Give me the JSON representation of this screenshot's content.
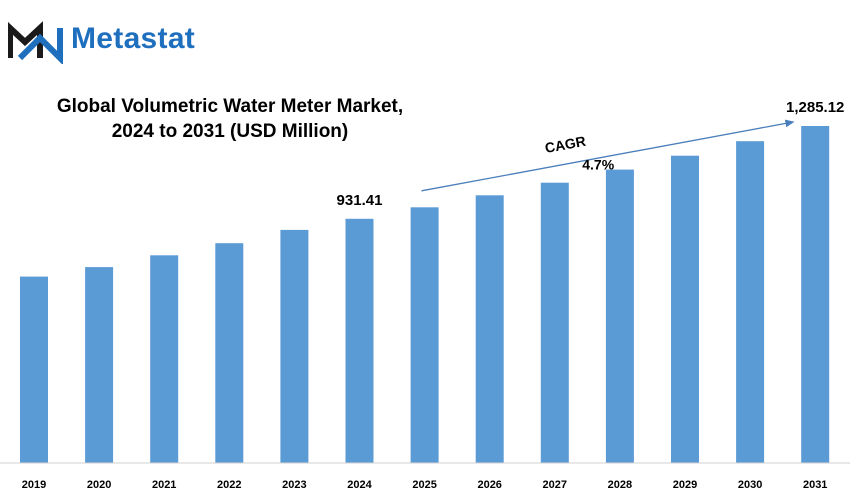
{
  "brand": {
    "name": "Metastat",
    "color": "#1f6fbf",
    "icon": "metastat-m-logo-icon"
  },
  "chart_data": {
    "type": "bar",
    "title": [
      "Global Volumetric Water Meter Market,",
      "2024 to 2031 (USD Million)"
    ],
    "categories": [
      "2019",
      "2020",
      "2021",
      "2022",
      "2023",
      "2024",
      "2025",
      "2026",
      "2027",
      "2028",
      "2029",
      "2030",
      "2031"
    ],
    "values": [
      711,
      747,
      792,
      838,
      889,
      931.41,
      975,
      1021,
      1069,
      1119,
      1172,
      1227,
      1285.12
    ],
    "data_labels": {
      "2024": "931.41",
      "2031": "1,285.12"
    },
    "annotation": {
      "label": "CAGR",
      "value": "4.7%"
    },
    "bar_color": "#5b9bd5",
    "arrow_color": "#4a7ebb",
    "ylim": [
      0,
      1350
    ],
    "grid": false,
    "legend": "none"
  }
}
